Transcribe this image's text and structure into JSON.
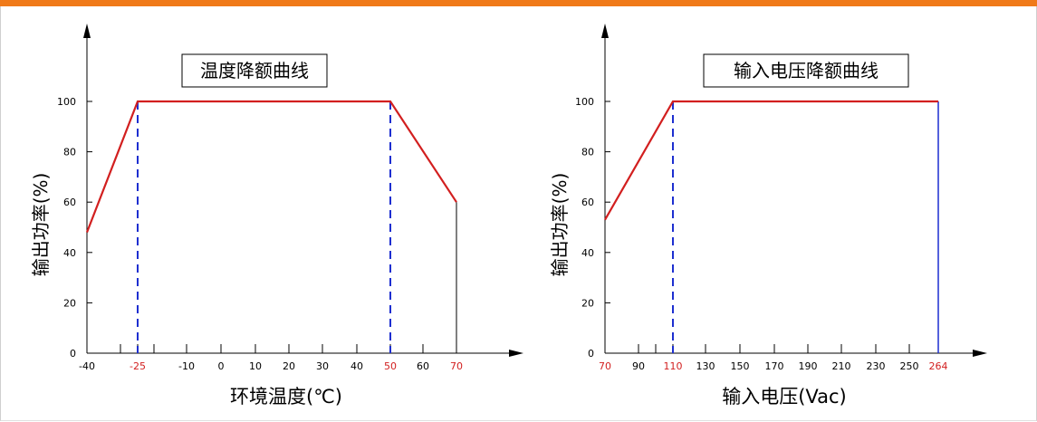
{
  "colors": {
    "accent_bar": "#f07a19",
    "curve": "#d21f1f",
    "marker": "#1d2fd0",
    "axis": "#000000",
    "tick_red": "#d21f1f"
  },
  "chart_data": [
    {
      "type": "line",
      "title": "温度降额曲线",
      "xlabel": "环境温度(℃)",
      "ylabel": "输出功率(%)",
      "x_ticks": [
        "-40",
        "-25",
        "-10",
        "0",
        "10",
        "20",
        "30",
        "40",
        "50",
        "60",
        "70"
      ],
      "x_ticks_red": [
        "-25",
        "50",
        "70"
      ],
      "y_ticks": [
        "0",
        "20",
        "40",
        "60",
        "80",
        "100"
      ],
      "xlim": [
        -40,
        70
      ],
      "ylim": [
        0,
        100
      ],
      "series": [
        {
          "x": [
            -40,
            -25,
            50,
            70
          ],
          "y": [
            48,
            100,
            100,
            60
          ]
        }
      ],
      "markers": [
        {
          "x": -25,
          "y": 100,
          "style": "dashed"
        },
        {
          "x": 50,
          "y": 100,
          "style": "dashed"
        },
        {
          "x": 70,
          "y": 60,
          "style": "solid-black"
        }
      ]
    },
    {
      "type": "line",
      "title": "输入电压降额曲线",
      "xlabel": "输入电压(Vac)",
      "ylabel": "输出功率(%)",
      "x_ticks": [
        "70",
        "90",
        "110",
        "130",
        "150",
        "170",
        "190",
        "210",
        "230",
        "250",
        "264"
      ],
      "x_ticks_red": [
        "70",
        "110",
        "264"
      ],
      "y_ticks": [
        "0",
        "20",
        "40",
        "60",
        "80",
        "100"
      ],
      "xlim": [
        70,
        264
      ],
      "ylim": [
        0,
        100
      ],
      "series": [
        {
          "x": [
            70,
            110,
            264
          ],
          "y": [
            53,
            100,
            100
          ]
        }
      ],
      "markers": [
        {
          "x": 110,
          "y": 100,
          "style": "dashed"
        },
        {
          "x": 264,
          "y": 100,
          "style": "solid-blue"
        }
      ]
    }
  ]
}
